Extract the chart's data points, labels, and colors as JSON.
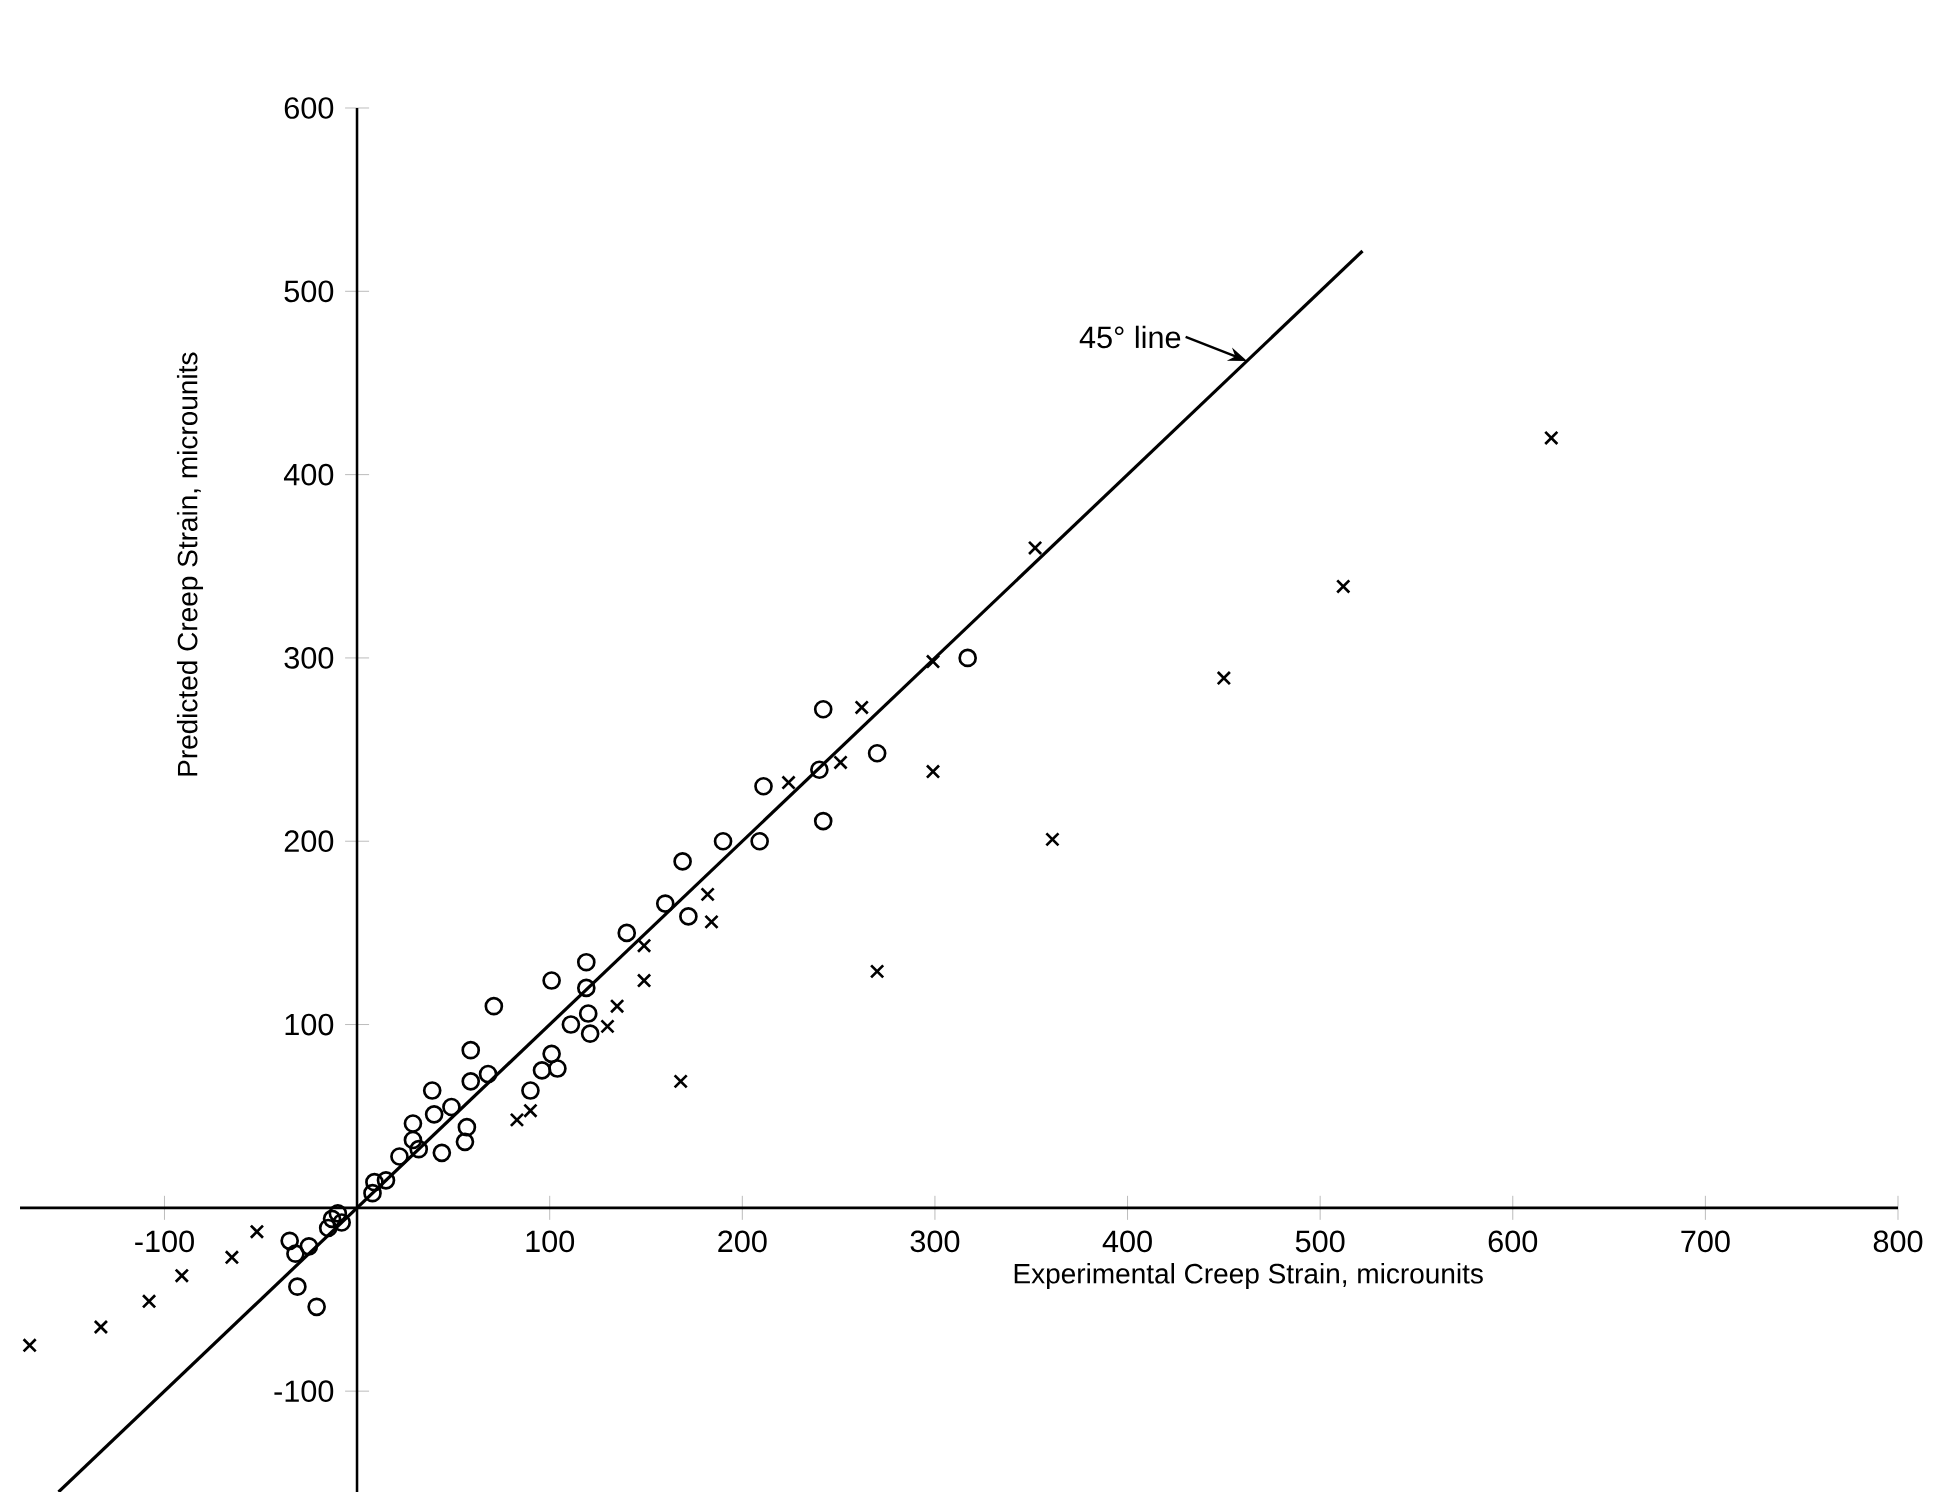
{
  "chart_data": {
    "type": "scatter",
    "xlabel": "Experimental Creep Strain, microunits",
    "ylabel": "Predicted Creep Strain, microunits",
    "xlim": [
      -175,
      800
    ],
    "ylim": [
      -155,
      600
    ],
    "xticks": [
      -100,
      100,
      200,
      300,
      400,
      500,
      600,
      700,
      800
    ],
    "yticks": [
      -100,
      100,
      200,
      300,
      400,
      500,
      600
    ],
    "annotations": [
      {
        "text": "45° line",
        "x": 462,
        "y": 462
      }
    ],
    "series": [
      {
        "marker": "circle",
        "color": "#000000",
        "x": [
          317,
          242,
          270,
          240,
          242,
          211,
          209,
          190,
          169,
          160,
          172,
          140,
          119,
          119,
          101,
          120,
          111,
          121,
          71,
          59,
          59,
          68,
          101,
          96,
          104,
          90,
          39,
          29,
          40,
          49,
          57,
          56,
          29,
          22,
          32,
          44,
          9,
          15,
          8,
          -35,
          -32,
          -25,
          -31,
          -21,
          -13,
          -8,
          -15,
          -10
        ],
        "values": [
          300,
          272,
          248,
          239,
          211,
          230,
          200,
          200,
          189,
          166,
          159,
          150,
          134,
          120,
          124,
          106,
          100,
          95,
          110,
          86,
          69,
          73,
          84,
          75,
          76,
          64,
          64,
          46,
          51,
          55,
          44,
          36,
          37,
          28,
          32,
          30,
          14,
          15,
          8,
          -18,
          -25,
          -21,
          -43,
          -54,
          -6,
          -8,
          -11,
          -3
        ]
      },
      {
        "marker": "cross",
        "color": "#000000",
        "x": [
          620,
          512,
          450,
          352,
          361,
          299,
          262,
          224,
          251,
          299,
          270,
          168,
          182,
          184,
          149,
          149,
          135,
          130,
          83,
          90,
          -170,
          -133,
          -108,
          -91,
          -65,
          -52
        ],
        "values": [
          420,
          339,
          289,
          360,
          201,
          298,
          273,
          232,
          243,
          238,
          129,
          69,
          171,
          156,
          143,
          124,
          110,
          99,
          48,
          53,
          -75,
          -65,
          -51,
          -37,
          -27,
          -13
        ]
      },
      {
        "type": "line",
        "marker": "none",
        "color": "#000000",
        "x": [
          -155,
          522
        ],
        "values": [
          -155,
          522
        ]
      }
    ]
  }
}
